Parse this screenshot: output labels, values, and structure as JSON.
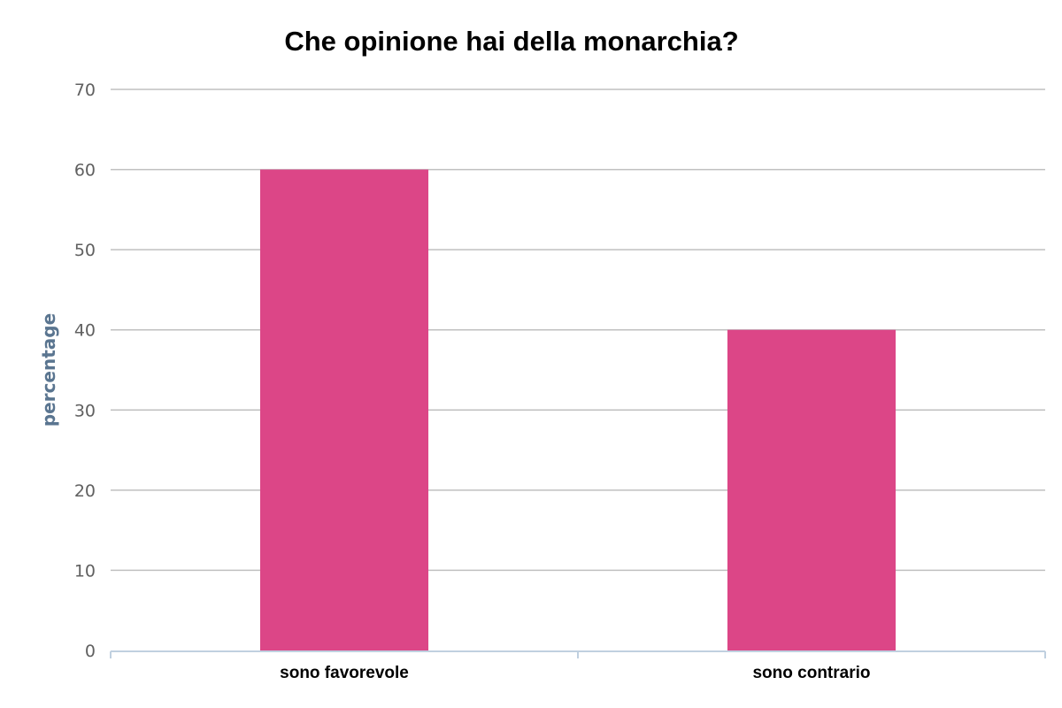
{
  "chart_data": {
    "type": "bar",
    "title": "Che opinione hai della monarchia?",
    "xlabel": "",
    "ylabel": "percentage",
    "categories": [
      "sono favorevole",
      "sono contrario"
    ],
    "series": [
      {
        "values": [
          60,
          40
        ]
      }
    ],
    "ylim": [
      0,
      70
    ],
    "yticks": [
      0,
      10,
      20,
      30,
      40,
      50,
      60,
      70
    ],
    "grid": true,
    "legend": "none",
    "colors": {
      "bar": "#dc4687",
      "grid": "#c0c0c0",
      "axis": "#c0d0e0"
    }
  }
}
